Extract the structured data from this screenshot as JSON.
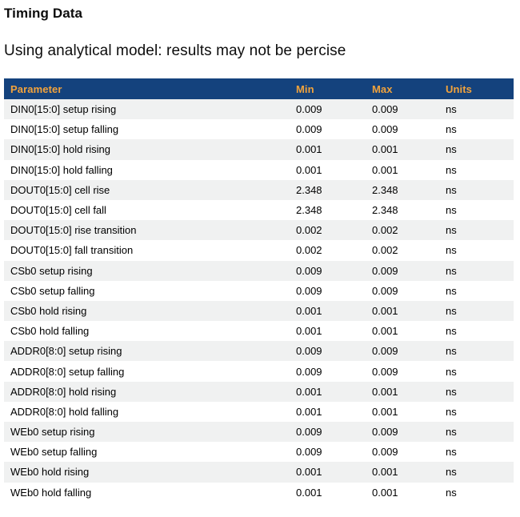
{
  "page": {
    "title": "Timing Data",
    "subtitle": "Using analytical model: results may not be percise"
  },
  "table": {
    "columns": [
      "Parameter",
      "Min",
      "Max",
      "Units"
    ],
    "rows": [
      {
        "parameter": "DIN0[15:0] setup rising",
        "min": "0.009",
        "max": "0.009",
        "units": "ns"
      },
      {
        "parameter": "DIN0[15:0] setup falling",
        "min": "0.009",
        "max": "0.009",
        "units": "ns"
      },
      {
        "parameter": "DIN0[15:0] hold rising",
        "min": "0.001",
        "max": "0.001",
        "units": "ns"
      },
      {
        "parameter": "DIN0[15:0] hold falling",
        "min": "0.001",
        "max": "0.001",
        "units": "ns"
      },
      {
        "parameter": "DOUT0[15:0] cell rise",
        "min": "2.348",
        "max": "2.348",
        "units": "ns"
      },
      {
        "parameter": "DOUT0[15:0] cell fall",
        "min": "2.348",
        "max": "2.348",
        "units": "ns"
      },
      {
        "parameter": "DOUT0[15:0] rise transition",
        "min": "0.002",
        "max": "0.002",
        "units": "ns"
      },
      {
        "parameter": "DOUT0[15:0] fall transition",
        "min": "0.002",
        "max": "0.002",
        "units": "ns"
      },
      {
        "parameter": "CSb0 setup rising",
        "min": "0.009",
        "max": "0.009",
        "units": "ns"
      },
      {
        "parameter": "CSb0 setup falling",
        "min": "0.009",
        "max": "0.009",
        "units": "ns"
      },
      {
        "parameter": "CSb0 hold rising",
        "min": "0.001",
        "max": "0.001",
        "units": "ns"
      },
      {
        "parameter": "CSb0 hold falling",
        "min": "0.001",
        "max": "0.001",
        "units": "ns"
      },
      {
        "parameter": "ADDR0[8:0] setup rising",
        "min": "0.009",
        "max": "0.009",
        "units": "ns"
      },
      {
        "parameter": "ADDR0[8:0] setup falling",
        "min": "0.009",
        "max": "0.009",
        "units": "ns"
      },
      {
        "parameter": "ADDR0[8:0] hold rising",
        "min": "0.001",
        "max": "0.001",
        "units": "ns"
      },
      {
        "parameter": "ADDR0[8:0] hold falling",
        "min": "0.001",
        "max": "0.001",
        "units": "ns"
      },
      {
        "parameter": "WEb0 setup rising",
        "min": "0.009",
        "max": "0.009",
        "units": "ns"
      },
      {
        "parameter": "WEb0 setup falling",
        "min": "0.009",
        "max": "0.009",
        "units": "ns"
      },
      {
        "parameter": "WEb0 hold rising",
        "min": "0.001",
        "max": "0.001",
        "units": "ns"
      },
      {
        "parameter": "WEb0 hold falling",
        "min": "0.001",
        "max": "0.001",
        "units": "ns"
      }
    ],
    "colors": {
      "header_background": "#14427d",
      "header_text": "#f2a33c",
      "stripe_background": "#f0f1f1"
    }
  }
}
